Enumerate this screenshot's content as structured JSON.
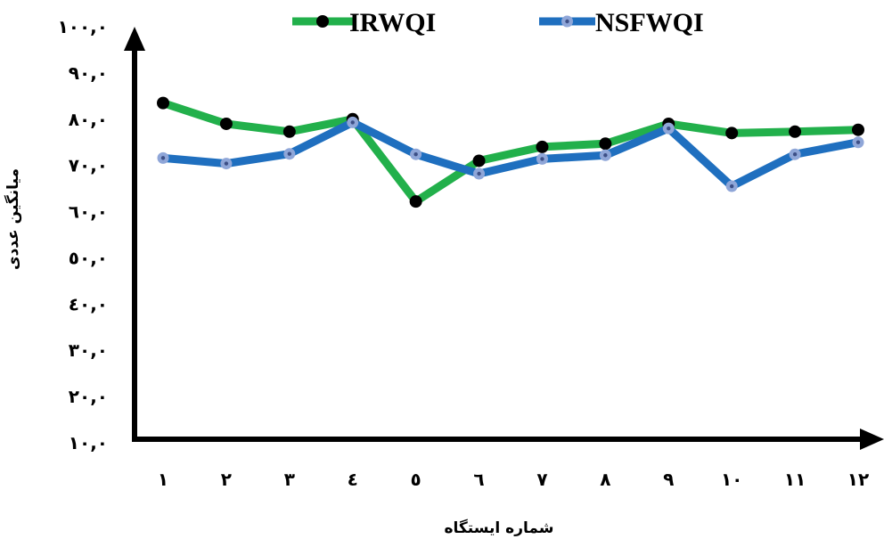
{
  "chart_data": {
    "type": "line",
    "categories": [
      "١",
      "٢",
      "٣",
      "٤",
      "٥",
      "٦",
      "٧",
      "٨",
      "٩",
      "١٠",
      "١١",
      "١٢"
    ],
    "xlabel": "شماره ایستگاه",
    "ylabel": "میانگین عددی",
    "yticks": [
      {
        "value": 10,
        "label": "١٠,٠"
      },
      {
        "value": 20,
        "label": "٢٠,٠"
      },
      {
        "value": 30,
        "label": "٣٠,٠"
      },
      {
        "value": 40,
        "label": "٤٠,٠"
      },
      {
        "value": 50,
        "label": "٥٠,٠"
      },
      {
        "value": 60,
        "label": "٦٠,٠"
      },
      {
        "value": 70,
        "label": "٧٠,٠"
      },
      {
        "value": 80,
        "label": "٨٠,٠"
      },
      {
        "value": 90,
        "label": "٩٠,٠"
      },
      {
        "value": 100,
        "label": "١٠٠,٠"
      }
    ],
    "ylim": [
      10,
      100
    ],
    "grid": false,
    "legend_position": "top",
    "series": [
      {
        "name": "IRWQI",
        "color": "#22b04b",
        "marker_color": "#000000",
        "values": [
          83.5,
          79,
          77.3,
          80,
          62.2,
          71,
          74,
          74.7,
          79,
          77,
          77.3,
          77.7
        ]
      },
      {
        "name": "NSFWQI",
        "color": "#1f6fbf",
        "marker_color": "#8fa6d8",
        "values": [
          71.6,
          70.4,
          72.5,
          79.3,
          72.4,
          68.2,
          71.4,
          72.2,
          78,
          65.5,
          72.4,
          75
        ]
      }
    ]
  }
}
